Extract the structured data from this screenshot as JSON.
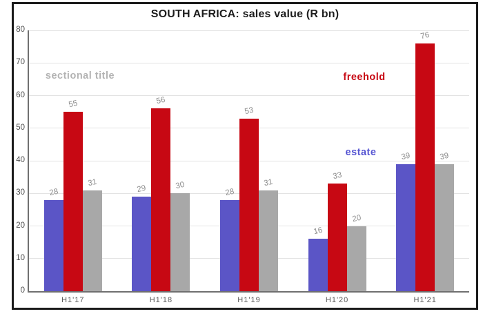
{
  "chart_data": {
    "type": "bar",
    "title": "SOUTH AFRICA: sales value (R bn)",
    "categories": [
      "H1'17",
      "H1'18",
      "H1'19",
      "H1'20",
      "H1'21"
    ],
    "series": [
      {
        "name": "estate",
        "color": "#5b55c6",
        "values": [
          28,
          29,
          28,
          16,
          39
        ]
      },
      {
        "name": "freehold",
        "color": "#c70813",
        "values": [
          55,
          56,
          53,
          33,
          76
        ]
      },
      {
        "name": "sectional title",
        "color": "#a8a8a8",
        "values": [
          31,
          30,
          31,
          20,
          39
        ]
      }
    ],
    "xlabel": "",
    "ylabel": "",
    "ylim": [
      0,
      80
    ],
    "yticks": [
      0,
      10,
      20,
      30,
      40,
      50,
      60,
      70,
      80
    ],
    "grid": true,
    "legend_position": "in-plot text annotations",
    "annotations": [
      {
        "text": "sectional title",
        "color": "#b3b3b3",
        "x": 116,
        "y": 110
      },
      {
        "text": "freehold",
        "color": "#c70813",
        "x": 528,
        "y": 112
      },
      {
        "text": "estate",
        "color": "#5554d2",
        "x": 523,
        "y": 221
      }
    ],
    "data_label_color": "#8d8d8d",
    "axis_label_color": "#595959",
    "axis_line_color": "#6f6f6f",
    "grid_color": "#e3e3e3",
    "frame_border_color": "#1a1a1a",
    "background": "#ffffff"
  }
}
